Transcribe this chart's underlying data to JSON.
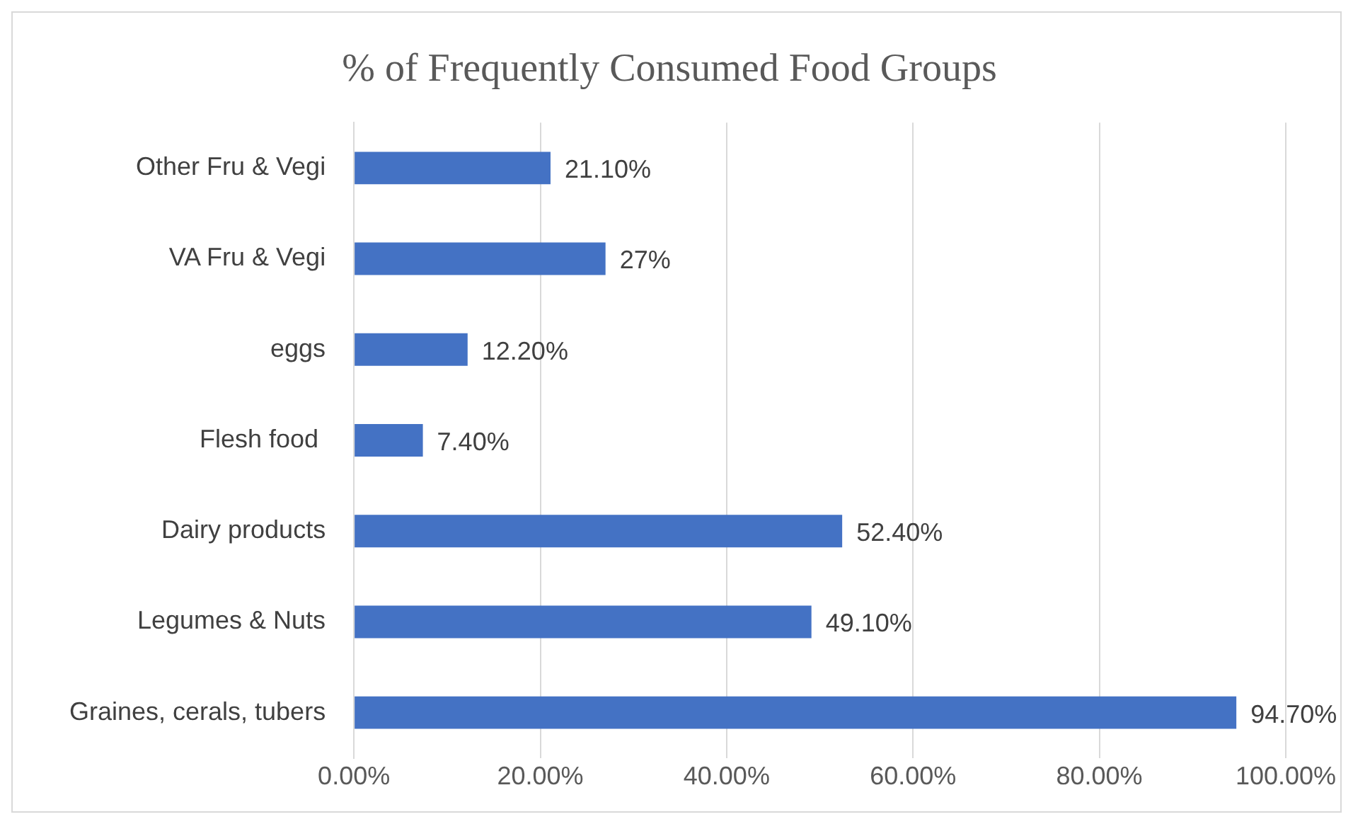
{
  "chart_data": {
    "type": "bar",
    "orientation": "horizontal",
    "title": "% of Frequently Consumed Food Groups",
    "categories": [
      "Other Fru & Vegi",
      "VA Fru & Vegi",
      "eggs",
      "Flesh food ",
      "Dairy products",
      "Legumes & Nuts",
      "Graines, cerals, tubers"
    ],
    "values": [
      21.1,
      27,
      12.2,
      7.4,
      52.4,
      49.1,
      94.7
    ],
    "value_labels": [
      "21.10%",
      "27%",
      "12.20%",
      "7.40%",
      "52.40%",
      "49.10%",
      "94.70%"
    ],
    "color": "#4472c4",
    "xlim": [
      0,
      100
    ],
    "xticks": [
      {
        "value": 0,
        "label": "0.00%"
      },
      {
        "value": 20,
        "label": "20.00%"
      },
      {
        "value": 40,
        "label": "40.00%"
      },
      {
        "value": 60,
        "label": "60.00%"
      },
      {
        "value": 80,
        "label": "80.00%"
      },
      {
        "value": 100,
        "label": "100.00%"
      }
    ],
    "grid": "x",
    "legend": false
  }
}
